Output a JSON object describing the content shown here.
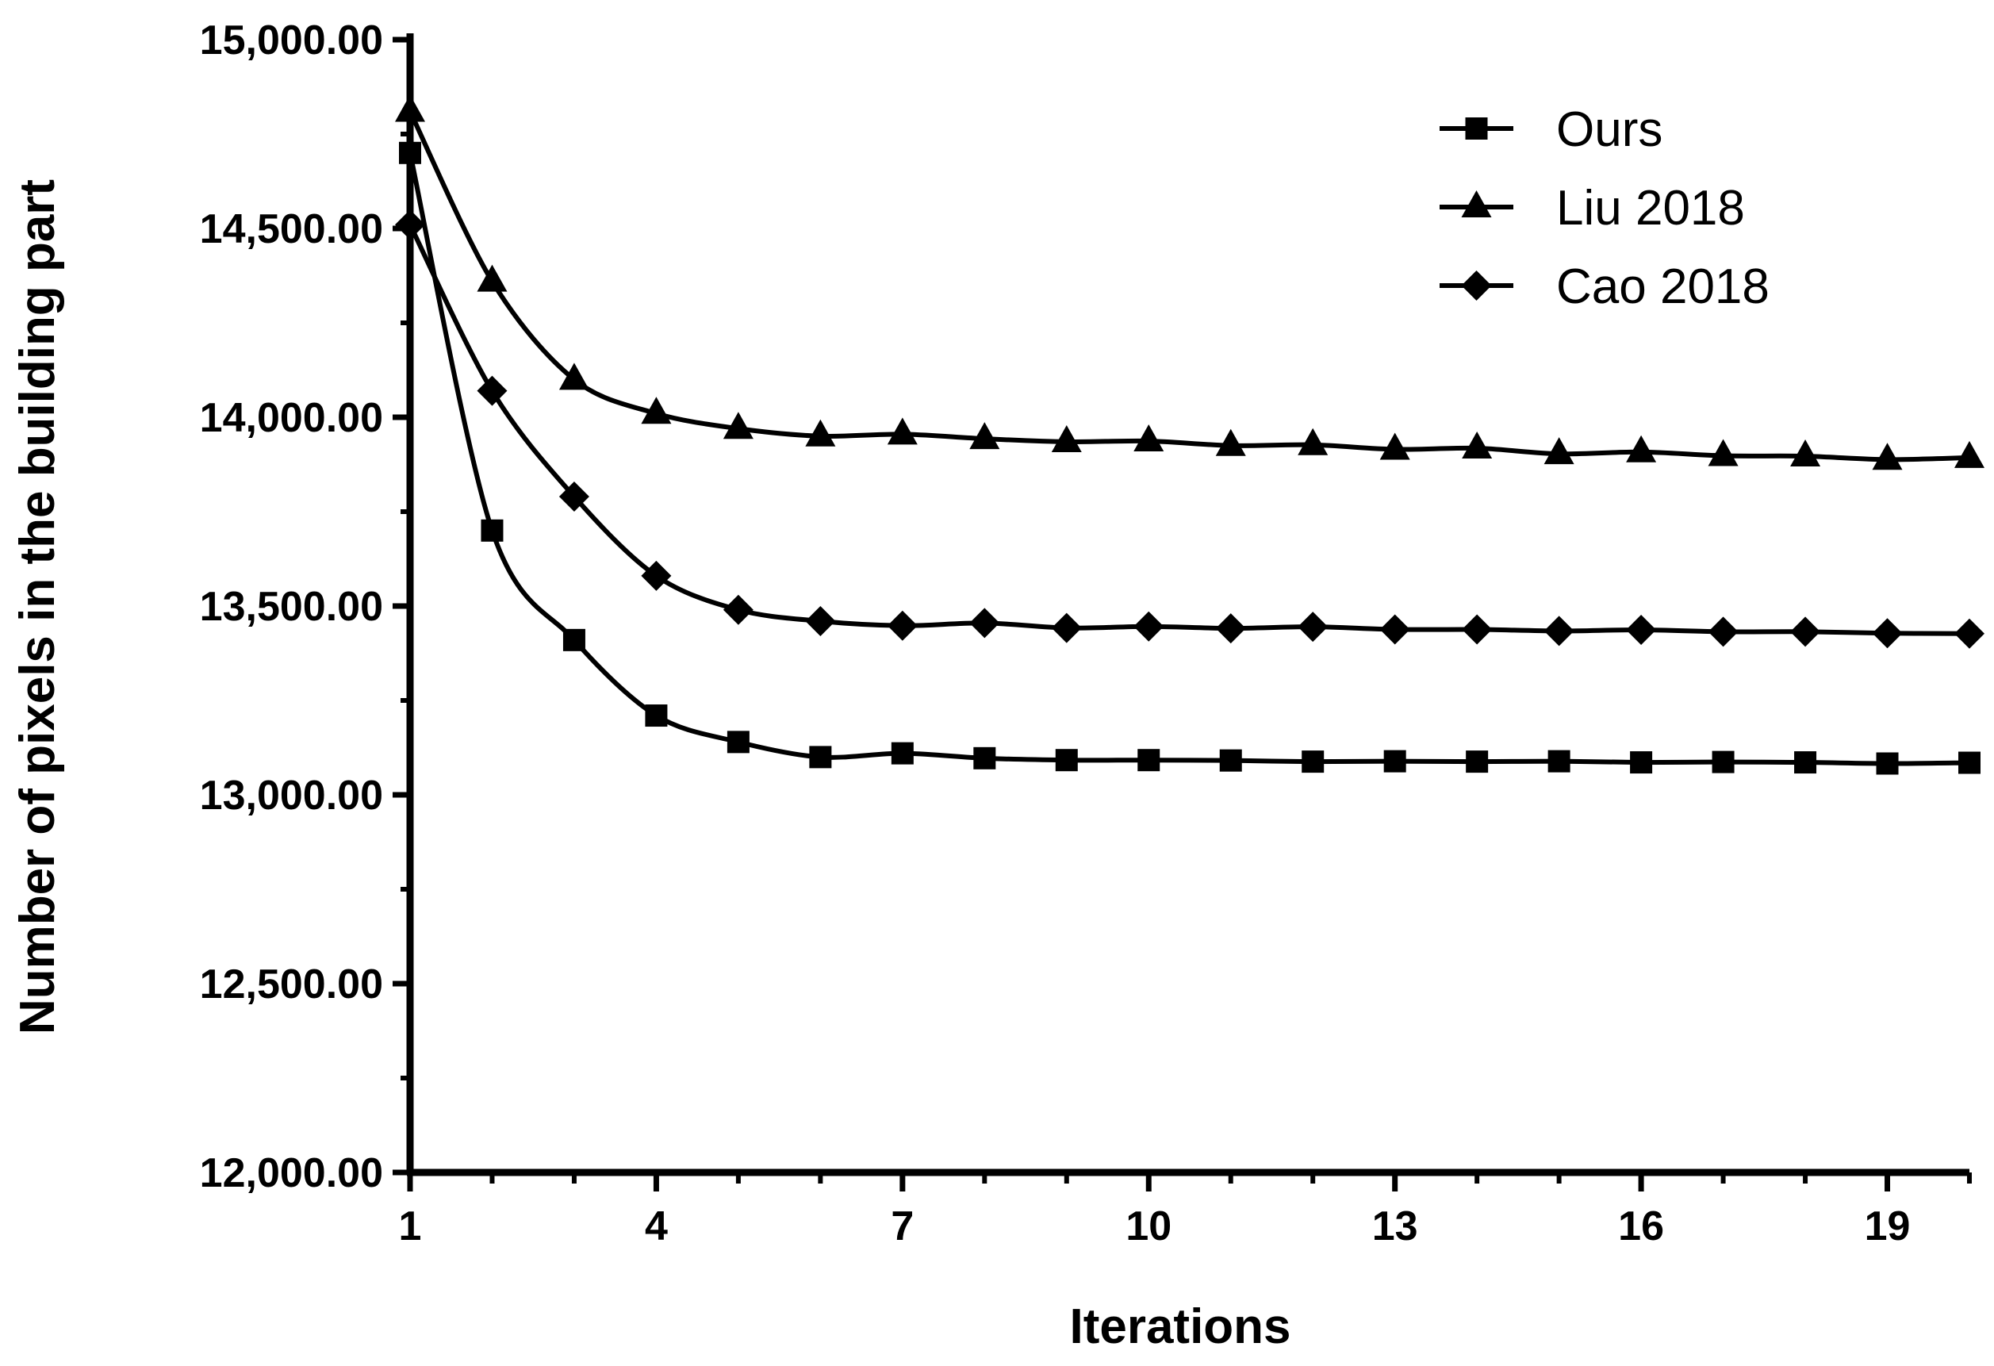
{
  "chart_data": {
    "type": "line",
    "title": "",
    "xlabel": "Iterations",
    "ylabel": "Number of pixels in the building part",
    "xlim": [
      1,
      20
    ],
    "ylim": [
      12000,
      15000
    ],
    "x": [
      1,
      2,
      3,
      4,
      5,
      6,
      7,
      8,
      9,
      10,
      11,
      12,
      13,
      14,
      15,
      16,
      17,
      18,
      19,
      20
    ],
    "x_ticks": [
      1,
      4,
      7,
      10,
      13,
      16,
      19
    ],
    "x_tick_labels": [
      "1",
      "4",
      "7",
      "10",
      "13",
      "16",
      "19"
    ],
    "y_ticks": [
      12000,
      12500,
      13000,
      13500,
      14000,
      14500,
      15000
    ],
    "y_tick_labels": [
      "12,000.00",
      "12,500.00",
      "13,000.00",
      "13,500.00",
      "14,000.00",
      "14,500.00",
      "15,000.00"
    ],
    "legend_position": "top-right",
    "series": [
      {
        "name": "Ours",
        "marker": "square",
        "values": [
          14700,
          13700,
          13410,
          13210,
          13140,
          13100,
          13110,
          13097,
          13092,
          13092,
          13091,
          13088,
          13089,
          13088,
          13089,
          13086,
          13087,
          13086,
          13083,
          13085
        ]
      },
      {
        "name": "Liu 2018",
        "marker": "triangle",
        "values": [
          14810,
          14360,
          14100,
          14010,
          13970,
          13950,
          13955,
          13943,
          13935,
          13937,
          13925,
          13927,
          13915,
          13918,
          13903,
          13908,
          13898,
          13897,
          13888,
          13893
        ]
      },
      {
        "name": "Cao 2018",
        "marker": "diamond",
        "values": [
          14510,
          14070,
          13790,
          13580,
          13490,
          13460,
          13448,
          13455,
          13442,
          13446,
          13441,
          13445,
          13438,
          13438,
          13434,
          13437,
          13432,
          13432,
          13428,
          13427
        ]
      }
    ]
  }
}
